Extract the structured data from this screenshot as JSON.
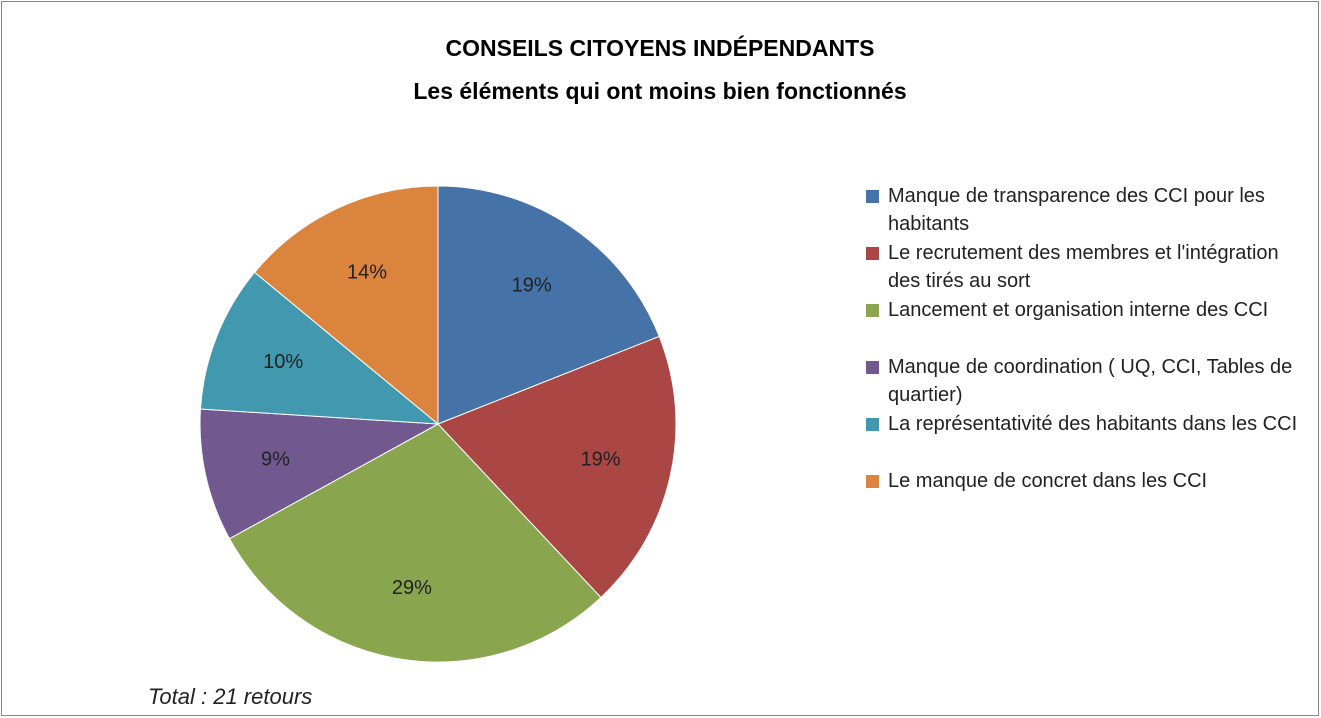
{
  "chart_data": {
    "type": "pie",
    "title": [
      "CONSEILS CITOYENS INDÉPENDANTS",
      "Les éléments qui ont moins bien fonctionnés"
    ],
    "categories": [
      "Manque de transparence des CCI pour les habitants",
      "Le recrutement des membres et l'intégration des tirés au sort",
      "Lancement et organisation interne des CCI",
      "Manque de coordination ( UQ, CCI, Tables de quartier)",
      "La représentativité des habitants dans les CCI",
      "Le manque de concret dans les CCI"
    ],
    "values": [
      19,
      19,
      29,
      9,
      10,
      14
    ],
    "value_labels": [
      "19%",
      "19%",
      "29%",
      "9%",
      "10%",
      "14%"
    ],
    "colors": [
      "#4572a7",
      "#aa4643",
      "#89a54e",
      "#71588f",
      "#4198af",
      "#db843d"
    ],
    "annotation": "Total : 21 retours",
    "legend": "right"
  }
}
